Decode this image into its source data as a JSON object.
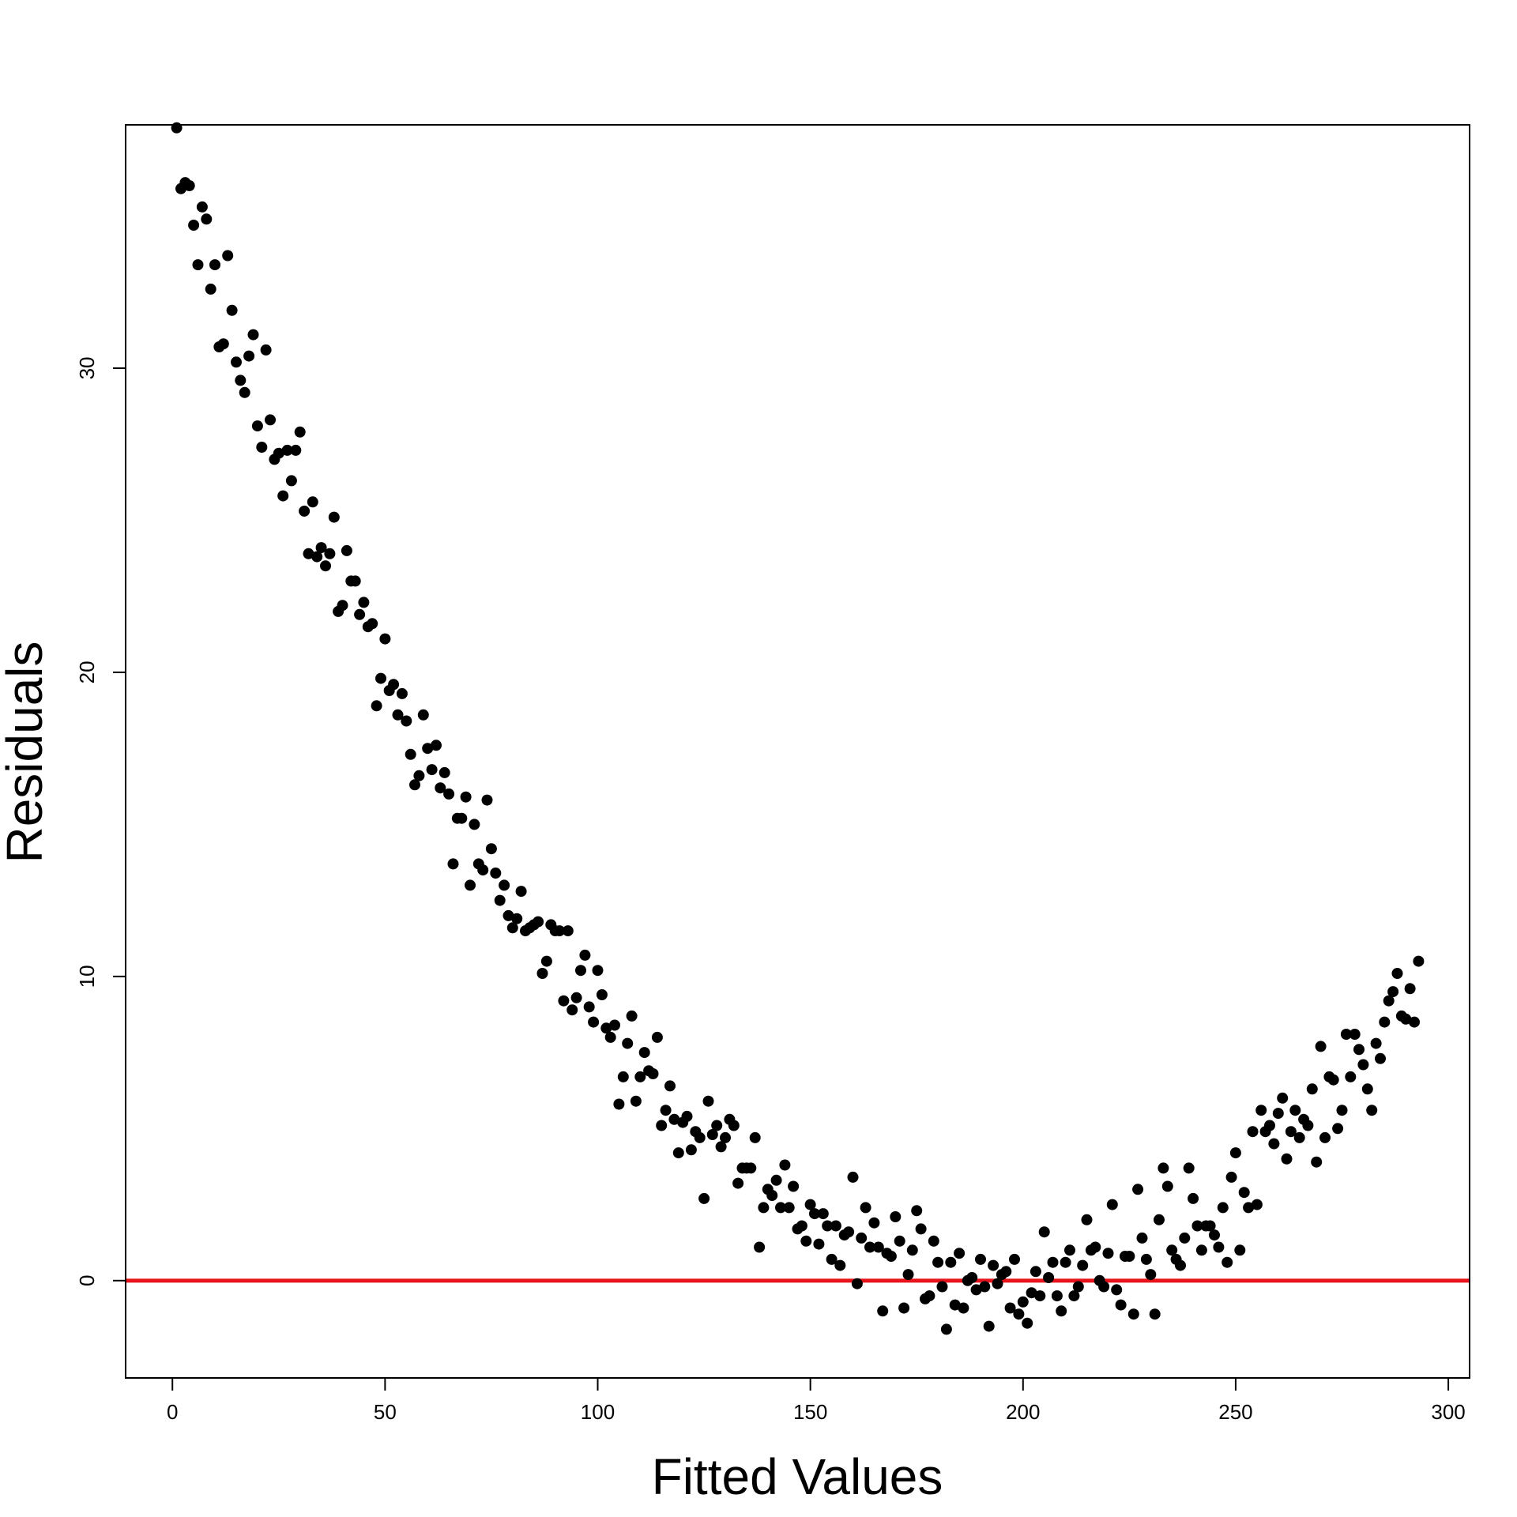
{
  "chart_data": {
    "type": "scatter",
    "title": "",
    "xlabel": "Fitted Values",
    "ylabel": "Residuals",
    "xlim": [
      -11,
      305
    ],
    "ylim": [
      -3.2,
      38.0
    ],
    "x_ticks": [
      0,
      50,
      100,
      150,
      200,
      250,
      300
    ],
    "y_ticks": [
      0,
      10,
      20,
      30
    ],
    "x_tick_labels": [
      "0",
      "50",
      "100",
      "150",
      "200",
      "250",
      "300"
    ],
    "y_tick_labels": [
      "0",
      "10",
      "20",
      "30"
    ],
    "grid": false,
    "legend": "none",
    "point_color": "#000000",
    "reference_line": {
      "y": 0,
      "color": "#e8141c"
    },
    "series": [
      {
        "x": [
          1,
          2,
          3,
          4,
          5,
          6,
          7,
          8,
          9,
          10,
          11,
          12,
          13,
          14,
          15,
          16,
          17,
          18,
          19,
          20,
          21,
          22,
          23,
          24,
          25,
          26,
          27,
          28,
          29,
          30,
          31,
          32,
          33,
          34,
          35,
          36,
          37,
          38,
          39,
          40,
          41,
          42,
          43,
          44,
          45,
          46,
          47,
          48,
          49,
          50,
          51,
          52,
          53,
          54,
          55,
          56,
          57,
          58,
          59,
          60,
          61,
          62,
          63,
          64,
          65,
          66,
          67,
          68,
          69,
          70,
          71,
          72,
          73,
          74,
          75,
          76,
          77,
          78,
          79,
          80,
          81,
          82,
          83,
          84,
          85,
          86,
          87,
          88,
          89,
          90,
          91,
          92,
          93,
          94,
          95,
          96,
          97,
          98,
          99,
          100,
          101,
          102,
          103,
          104,
          105,
          106,
          107,
          108,
          109,
          110,
          111,
          112,
          113,
          114,
          115,
          116,
          117,
          118,
          119,
          120,
          121,
          122,
          123,
          124,
          125,
          126,
          127,
          128,
          129,
          130,
          131,
          132,
          133,
          134,
          135,
          136,
          137,
          138,
          139,
          140,
          141,
          142,
          143,
          144,
          145,
          146,
          147,
          148,
          149,
          150,
          151,
          152,
          153,
          154,
          155,
          156,
          157,
          158,
          159,
          160,
          161,
          162,
          163,
          164,
          165,
          166,
          167,
          168,
          169,
          170,
          171,
          172,
          173,
          174,
          175,
          176,
          177,
          178,
          179,
          180,
          181,
          182,
          183,
          184,
          185,
          186,
          187,
          188,
          189,
          190,
          191,
          192,
          193,
          194,
          195,
          196,
          197,
          198,
          199,
          200,
          201,
          202,
          203,
          204,
          205,
          206,
          207,
          208,
          209,
          210,
          211,
          212,
          213,
          214,
          215,
          216,
          217,
          218,
          219,
          220,
          221,
          222,
          223,
          224,
          225,
          226,
          227,
          228,
          229,
          230,
          231,
          232,
          233,
          234,
          235,
          236,
          237,
          238,
          239,
          240,
          241,
          242,
          243,
          244,
          245,
          246,
          247,
          248,
          249,
          250,
          251,
          252,
          253,
          254,
          255,
          256,
          257,
          258,
          259,
          260,
          261,
          262,
          263,
          264,
          265,
          266,
          267,
          268,
          269,
          270,
          271,
          272,
          273,
          274,
          275,
          276,
          277,
          278,
          279,
          280,
          281,
          282,
          283,
          284,
          285,
          286,
          287,
          288,
          289,
          290,
          291,
          292,
          293
        ],
        "y": [
          37.9,
          35.9,
          36.1,
          36.0,
          34.7,
          33.4,
          35.3,
          34.9,
          32.6,
          33.4,
          30.7,
          30.8,
          33.7,
          31.9,
          30.2,
          29.6,
          29.2,
          30.4,
          31.1,
          28.1,
          27.4,
          30.6,
          28.3,
          27.0,
          27.2,
          25.8,
          27.3,
          26.3,
          27.3,
          27.9,
          25.3,
          23.9,
          25.6,
          23.8,
          24.1,
          23.5,
          23.9,
          25.1,
          22.0,
          22.2,
          24.0,
          23.0,
          23.0,
          21.9,
          22.3,
          21.5,
          21.6,
          18.9,
          19.8,
          21.1,
          19.4,
          19.6,
          18.6,
          19.3,
          18.4,
          17.3,
          16.3,
          16.6,
          18.6,
          17.5,
          16.8,
          17.6,
          16.2,
          16.7,
          16.0,
          13.7,
          15.2,
          15.2,
          15.9,
          13.0,
          15.0,
          13.7,
          13.5,
          15.8,
          14.2,
          13.4,
          12.5,
          13.0,
          12.0,
          11.6,
          11.9,
          12.8,
          11.5,
          11.6,
          11.7,
          11.8,
          10.1,
          10.5,
          11.7,
          11.5,
          11.5,
          9.2,
          11.5,
          8.9,
          9.3,
          10.2,
          10.7,
          9.0,
          8.5,
          10.2,
          9.4,
          8.3,
          8.0,
          8.4,
          5.8,
          6.7,
          7.8,
          8.7,
          5.9,
          6.7,
          7.5,
          6.9,
          6.8,
          8.0,
          5.1,
          5.6,
          6.4,
          5.3,
          4.2,
          5.2,
          5.4,
          4.3,
          4.9,
          4.7,
          2.7,
          5.9,
          4.8,
          5.1,
          4.4,
          4.7,
          5.3,
          5.1,
          3.2,
          3.7,
          3.7,
          3.7,
          4.7,
          1.1,
          2.4,
          3.0,
          2.8,
          3.3,
          2.4,
          3.8,
          2.4,
          3.1,
          1.7,
          1.8,
          1.3,
          2.5,
          2.2,
          1.2,
          2.2,
          1.8,
          0.7,
          1.8,
          0.5,
          1.5,
          1.6,
          3.4,
          -0.1,
          1.4,
          2.4,
          1.1,
          1.9,
          1.1,
          -1.0,
          0.9,
          0.8,
          2.1,
          1.3,
          -0.9,
          0.2,
          1.0,
          2.3,
          1.7,
          -0.6,
          -0.5,
          1.3,
          0.6,
          -0.2,
          -1.6,
          0.6,
          -0.8,
          0.9,
          -0.9,
          0.0,
          0.1,
          -0.3,
          0.7,
          -0.2,
          -1.5,
          0.5,
          -0.1,
          0.2,
          0.3,
          -0.9,
          0.7,
          -1.1,
          -0.7,
          -1.4,
          -0.4,
          0.3,
          -0.5,
          1.6,
          0.1,
          0.6,
          -0.5,
          -1.0,
          0.6,
          1.0,
          -0.5,
          -0.2,
          0.5,
          2.0,
          1.0,
          1.1,
          0.0,
          -0.2,
          0.9,
          2.5,
          -0.3,
          -0.8,
          0.8,
          0.8,
          -1.1,
          3.0,
          1.4,
          0.7,
          0.2,
          -1.1,
          2.0,
          3.7,
          3.1,
          1.0,
          0.7,
          0.5,
          1.4,
          3.7,
          2.7,
          1.8,
          1.0,
          1.8,
          1.8,
          1.5,
          1.1,
          2.4,
          0.6,
          3.4,
          4.2,
          1.0,
          2.9,
          2.4,
          4.9,
          2.5,
          5.6,
          4.9,
          5.1,
          4.5,
          5.5,
          6.0,
          4.0,
          4.9,
          5.6,
          4.7,
          5.3,
          5.1,
          6.3,
          3.9,
          7.7,
          4.7,
          6.7,
          6.6,
          5.0,
          5.6,
          8.1,
          6.7,
          8.1,
          7.6,
          7.1,
          6.3,
          5.6,
          7.8,
          7.3,
          8.5,
          9.2,
          9.5,
          10.1,
          8.7,
          8.6,
          9.6,
          8.5,
          10.5
        ]
      }
    ]
  }
}
